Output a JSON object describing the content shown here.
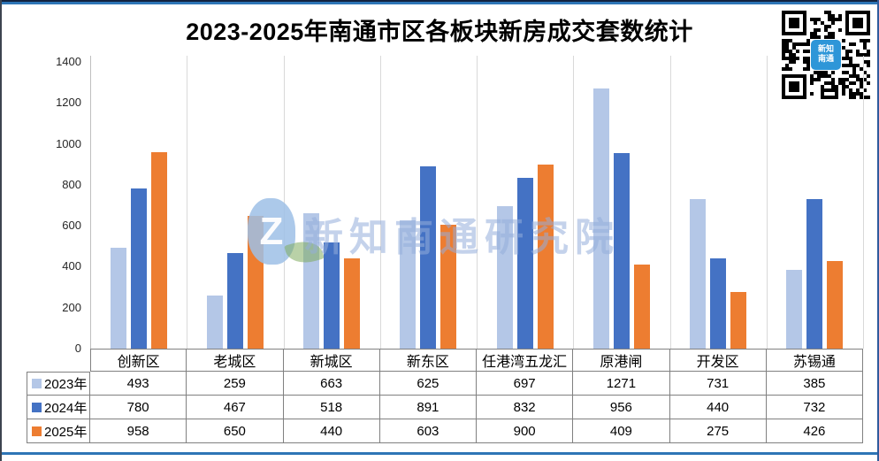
{
  "title": "2023-2025年南通市区各板块新房成交套数统计",
  "chart_data": {
    "type": "bar",
    "title": "2023-2025年南通市区各板块新房成交套数统计",
    "categories": [
      "创新区",
      "老城区",
      "新城区",
      "新东区",
      "任港湾五龙汇",
      "原港闸",
      "开发区",
      "苏锡通"
    ],
    "series": [
      {
        "name": "2023年",
        "color": "#B4C7E7",
        "values": [
          493,
          259,
          663,
          625,
          697,
          1271,
          731,
          385
        ]
      },
      {
        "name": "2024年",
        "color": "#4472C4",
        "values": [
          780,
          467,
          518,
          891,
          832,
          956,
          440,
          732
        ]
      },
      {
        "name": "2025年",
        "color": "#ED7D31",
        "values": [
          958,
          650,
          440,
          603,
          900,
          409,
          275,
          426
        ]
      }
    ],
    "xlabel": "",
    "ylabel": "",
    "ylim": [
      0,
      1400
    ],
    "yticks": [
      0,
      200,
      400,
      600,
      800,
      1000,
      1200,
      1400
    ],
    "grid": "vertical-category-separators-only",
    "legend_position": "table-left-column",
    "data_table_shown": true
  },
  "watermark": {
    "logo_letter": "Z",
    "text": "新知南通研究院"
  },
  "qr": {
    "center_line1": "新知",
    "center_line2": "南通"
  },
  "colors": {
    "series_2023": "#B4C7E7",
    "series_2024": "#4472C4",
    "series_2025": "#ED7D31",
    "frame_blue": "#2E75B6",
    "gridline": "#D9D9D9",
    "table_border": "#808080",
    "qr_logo_blue": "#2E96D8"
  }
}
